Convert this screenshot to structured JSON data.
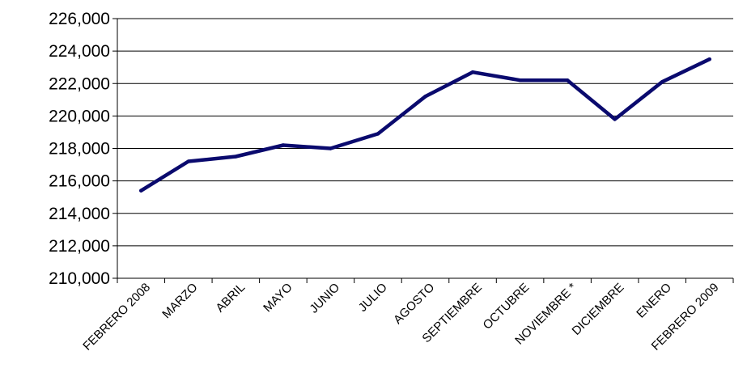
{
  "chart_data": {
    "type": "line",
    "categories": [
      "FEBRERO 2008",
      "MARZO",
      "ABRIL",
      "MAYO",
      "JUNIO",
      "JULIO",
      "AGOSTO",
      "SEPTIEMBRE",
      "OCTUBRE",
      "NOVIEMBRE *",
      "DICIEMBRE",
      "ENERO",
      "FEBRERO 2009"
    ],
    "series": [
      {
        "values": [
          215400,
          217200,
          217500,
          218200,
          218000,
          218900,
          221200,
          222700,
          222200,
          222200,
          219800,
          222100,
          223500
        ]
      }
    ],
    "y_ticks": [
      "210,000",
      "212,000",
      "214,000",
      "216,000",
      "218,000",
      "220,000",
      "222,000",
      "224,000",
      "226,000"
    ],
    "ylim": [
      210000,
      226000
    ],
    "y_tick_step": 2000,
    "grid": "horizontal",
    "legend": "none",
    "colors": {
      "line": "#0a0a6e",
      "grid": "#000000",
      "axis": "#000000"
    }
  }
}
